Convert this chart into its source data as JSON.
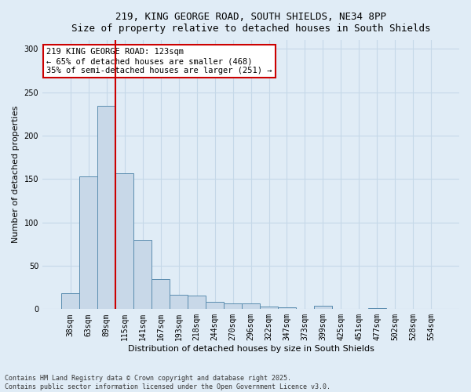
{
  "title_line1": "219, KING GEORGE ROAD, SOUTH SHIELDS, NE34 8PP",
  "title_line2": "Size of property relative to detached houses in South Shields",
  "xlabel": "Distribution of detached houses by size in South Shields",
  "ylabel": "Number of detached properties",
  "categories": [
    "38sqm",
    "63sqm",
    "89sqm",
    "115sqm",
    "141sqm",
    "167sqm",
    "193sqm",
    "218sqm",
    "244sqm",
    "270sqm",
    "296sqm",
    "322sqm",
    "347sqm",
    "373sqm",
    "399sqm",
    "425sqm",
    "451sqm",
    "477sqm",
    "502sqm",
    "528sqm",
    "554sqm"
  ],
  "values": [
    18,
    153,
    234,
    157,
    80,
    35,
    17,
    16,
    8,
    7,
    7,
    3,
    2,
    0,
    4,
    0,
    0,
    1,
    0,
    0,
    0
  ],
  "bar_color": "#c8d8e8",
  "bar_edge_color": "#5b8db0",
  "grid_color": "#c5d8e8",
  "background_color": "#e0ecf6",
  "vline_x_pos": 2.5,
  "vline_color": "#cc0000",
  "annotation_text": "219 KING GEORGE ROAD: 123sqm\n← 65% of detached houses are smaller (468)\n35% of semi-detached houses are larger (251) →",
  "annotation_box_facecolor": "#ffffff",
  "annotation_box_edgecolor": "#cc0000",
  "footer_line1": "Contains HM Land Registry data © Crown copyright and database right 2025.",
  "footer_line2": "Contains public sector information licensed under the Open Government Licence v3.0.",
  "ylim": [
    0,
    310
  ],
  "yticks": [
    0,
    50,
    100,
    150,
    200,
    250,
    300
  ],
  "title_fontsize": 9,
  "tick_fontsize": 7,
  "ylabel_fontsize": 8,
  "xlabel_fontsize": 8
}
